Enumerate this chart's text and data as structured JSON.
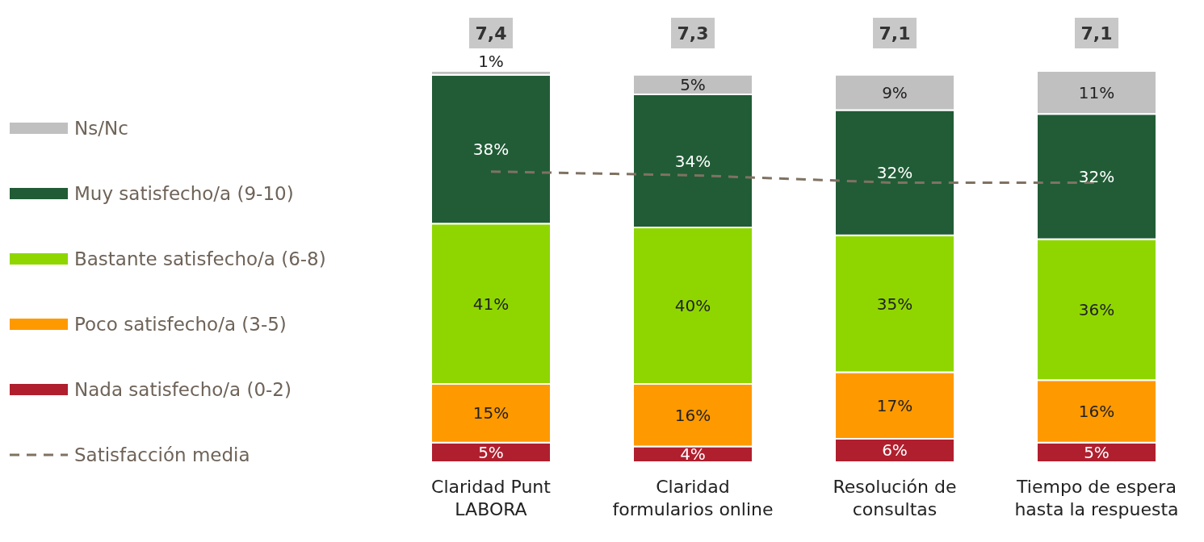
{
  "chart_data": {
    "type": "bar",
    "stacked": true,
    "categories": [
      "Claridad Punt LABORA",
      "Claridad formularios online",
      "Resolución de consultas",
      "Tiempo de espera hasta la respuesta"
    ],
    "series": [
      {
        "name": "Nada satisfecho/a (0-2)",
        "color": "#b01f2e",
        "values": [
          5,
          4,
          6,
          5
        ],
        "value_labels": [
          "5%",
          "4%",
          "6%",
          "5%"
        ]
      },
      {
        "name": "Poco satisfecho/a (3-5)",
        "color": "#ff9900",
        "values": [
          15,
          16,
          17,
          16
        ],
        "value_labels": [
          "15%",
          "16%",
          "17%",
          "16%"
        ]
      },
      {
        "name": "Bastante satisfecho/a (6-8)",
        "color": "#8fd600",
        "values": [
          41,
          40,
          35,
          36
        ],
        "value_labels": [
          "41%",
          "40%",
          "35%",
          "36%"
        ]
      },
      {
        "name": "Muy satisfecho/a (9-10)",
        "color": "#215c36",
        "values": [
          38,
          34,
          32,
          32
        ],
        "value_labels": [
          "38%",
          "34%",
          "32%",
          "32%"
        ]
      },
      {
        "name": "Ns/Nc",
        "color": "#c0c0c0",
        "values": [
          1,
          5,
          9,
          11
        ],
        "value_labels": [
          "1%",
          "5%",
          "9%",
          "11%"
        ]
      },
      {
        "name": "Satisfacción media",
        "type": "line",
        "axis": "y2",
        "color": "#7f7262",
        "line_style": "dashed",
        "marker": "none",
        "values": [
          7.4,
          7.3,
          7.1,
          7.1
        ],
        "value_labels": [
          "7,4",
          "7,3",
          "7,1",
          "7,1"
        ]
      }
    ],
    "y2lim": [
      -0.4,
      10.1
    ],
    "legend": "left"
  }
}
